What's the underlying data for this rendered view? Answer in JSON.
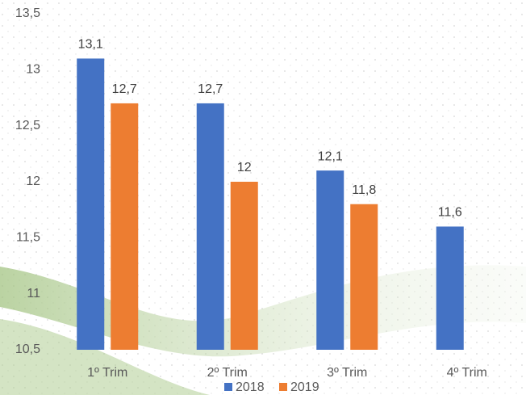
{
  "chart_data": {
    "type": "bar",
    "categories": [
      "1º Trim",
      "2º Trim",
      "3º Trim",
      "4º Trim"
    ],
    "series": [
      {
        "name": "2018",
        "color": "#4472c4",
        "values": [
          13.1,
          12.7,
          12.1,
          11.6
        ],
        "value_labels": [
          "13,1",
          "12,7",
          "12,1",
          "11,6"
        ]
      },
      {
        "name": "2019",
        "color": "#ed7d31",
        "values": [
          12.7,
          12,
          11.8,
          null
        ],
        "value_labels": [
          "12,7",
          "12",
          "11,8",
          null
        ]
      }
    ],
    "ylim": [
      10.5,
      13.5
    ],
    "yticks": [
      {
        "value": 10.5,
        "label": "10,5"
      },
      11,
      {
        "value": 11.5,
        "label": "11,5"
      },
      12,
      {
        "value": 12.5,
        "label": "12,5"
      },
      13,
      {
        "value": 13.5,
        "label": "13,5"
      }
    ],
    "grid": false,
    "legend": "bottom"
  }
}
